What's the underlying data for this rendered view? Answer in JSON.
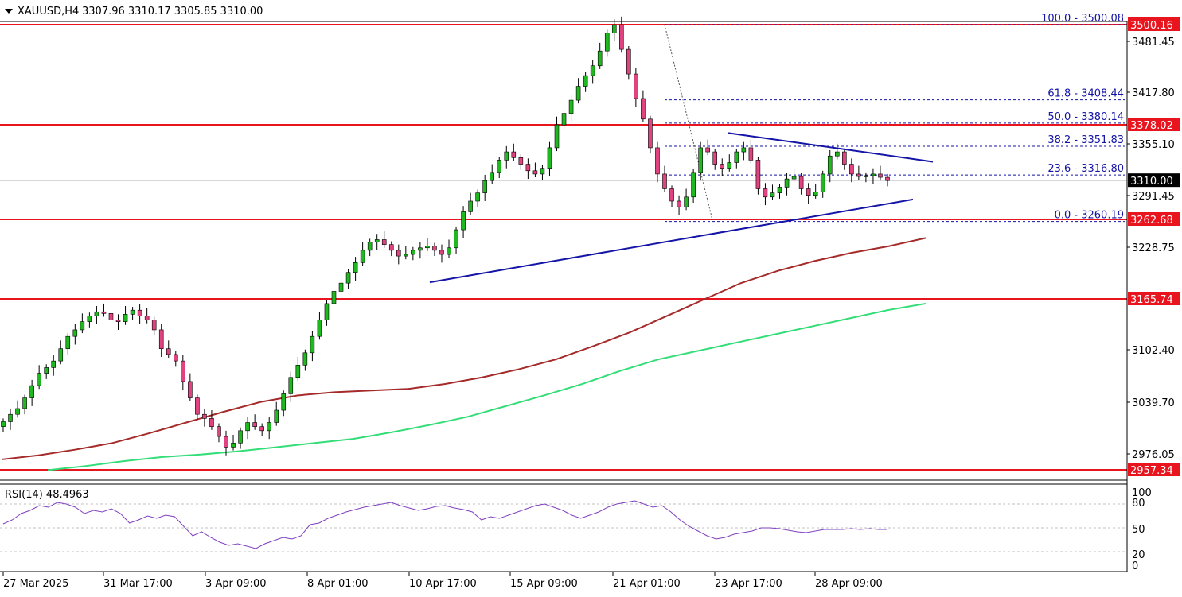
{
  "header": {
    "symbol": "XAUUSD,H4",
    "ohlc": "3307.96 3310.17 3305.85 3310.00"
  },
  "rsi_header": "RSI(14) 48.4963",
  "colors": {
    "background": "#ffffff",
    "bull": "#1fb81f",
    "bear": "#e0437f",
    "wick": "#000000",
    "ma_slow": "#a52a2a",
    "ma_fast": "#33dd77",
    "support": "#e8141e",
    "trend": "#1414a6",
    "fib": "#1414a6",
    "rsi": "#8040c0",
    "grid": "#c0c0c0"
  },
  "chart_data": [
    {
      "type": "candlestick",
      "panel": "price",
      "symbol": "XAUUSD",
      "timeframe": "H4",
      "ylim": [
        2957.34,
        3513.0
      ],
      "price_ticks": [
        "3481.45",
        "3417.80",
        "3355.10",
        "3291.45",
        "3228.75",
        "3102.40",
        "3039.70",
        "2976.05"
      ],
      "time_labels": [
        "27 Mar 2025",
        "31 Mar 17:00",
        "3 Apr 09:00",
        "8 Apr 01:00",
        "10 Apr 17:00",
        "15 Apr 09:00",
        "21 Apr 01:00",
        "23 Apr 17:00",
        "28 Apr 09:00"
      ],
      "horizontal_levels": [
        3500.16,
        3378.02,
        3262.68,
        3165.74,
        2957.34
      ],
      "level_labels": [
        "3500.16",
        "3378.02",
        "3262.68",
        "3165.74",
        "2957.34"
      ],
      "current_price": "3310.00",
      "fib_levels": [
        {
          "label": "100.0 - 3500.08",
          "value": 3500.08
        },
        {
          "label": "61.8 - 3408.44",
          "value": 3408.44
        },
        {
          "label": "50.0 - 3380.14",
          "value": 3380.14
        },
        {
          "label": "38.2 - 3351.83",
          "value": 3351.83
        },
        {
          "label": "23.6 - 3316.80",
          "value": 3316.8
        },
        {
          "label": "0.0 - 3260.19",
          "value": 3260.19
        }
      ],
      "trendlines": [
        {
          "from": [
            "10 Apr",
            3186
          ],
          "to": [
            "29 Apr",
            3287
          ]
        },
        {
          "from": [
            "23 Apr",
            3368
          ],
          "to": [
            "29 Apr",
            3333
          ]
        }
      ],
      "close_path": [
        3016,
        3025,
        3032,
        3045,
        3060,
        3075,
        3082,
        3090,
        3105,
        3120,
        3128,
        3138,
        3145,
        3150,
        3148,
        3140,
        3138,
        3147,
        3152,
        3145,
        3140,
        3128,
        3105,
        3098,
        3090,
        3065,
        3045,
        3025,
        3020,
        3010,
        2998,
        2985,
        2990,
        3005,
        3015,
        3010,
        3005,
        3015,
        3030,
        3050,
        3070,
        3085,
        3100,
        3120,
        3140,
        3160,
        3175,
        3185,
        3198,
        3210,
        3225,
        3235,
        3238,
        3232,
        3225,
        3218,
        3220,
        3225,
        3228,
        3230,
        3225,
        3220,
        3228,
        3250,
        3272,
        3285,
        3295,
        3310,
        3320,
        3335,
        3345,
        3338,
        3330,
        3322,
        3318,
        3325,
        3350,
        3378,
        3392,
        3408,
        3425,
        3438,
        3450,
        3468,
        3490,
        3500,
        3470,
        3440,
        3410,
        3385,
        3350,
        3318,
        3300,
        3285,
        3278,
        3290,
        3320,
        3350,
        3345,
        3330,
        3325,
        3332,
        3345,
        3350,
        3335,
        3300,
        3290,
        3295,
        3302,
        3312,
        3315,
        3300,
        3292,
        3296,
        3318,
        3340,
        3345,
        3330,
        3318,
        3315,
        3316,
        3318,
        3314,
        3310
      ]
    },
    {
      "type": "line",
      "panel": "price",
      "series": [
        {
          "values": [
            2970,
            2975,
            2982,
            2990,
            3002,
            3015,
            3028,
            3040,
            3048,
            3052,
            3054,
            3056,
            3062,
            3070,
            3080,
            3092,
            3108,
            3125,
            3145,
            3165,
            3185,
            3200,
            3212,
            3222,
            3230,
            3240
          ]
        },
        {
          "values": [
            2957,
            2962,
            2968,
            2973,
            2976,
            2980,
            2985,
            2990,
            2995,
            3003,
            3012,
            3022,
            3035,
            3048,
            3062,
            3078,
            3092,
            3102,
            3112,
            3122,
            3132,
            3142,
            3152,
            3160
          ]
        }
      ]
    },
    {
      "type": "line",
      "panel": "indicator",
      "name": "RSI(14)",
      "ylim": [
        0,
        100
      ],
      "yticks": [
        "100",
        "80",
        "50",
        "20",
        "0"
      ],
      "levels": [
        80,
        50,
        20
      ],
      "values": [
        55,
        60,
        68,
        72,
        78,
        76,
        82,
        80,
        76,
        68,
        72,
        70,
        74,
        68,
        56,
        60,
        65,
        62,
        66,
        64,
        52,
        40,
        45,
        38,
        32,
        28,
        30,
        27,
        24,
        30,
        34,
        38,
        36,
        40,
        54,
        56,
        62,
        66,
        70,
        73,
        76,
        78,
        80,
        82,
        78,
        75,
        72,
        74,
        77,
        78,
        75,
        73,
        70,
        60,
        64,
        62,
        66,
        70,
        74,
        78,
        80,
        76,
        72,
        66,
        62,
        66,
        70,
        76,
        80,
        82,
        84,
        80,
        76,
        78,
        70,
        60,
        52,
        46,
        40,
        36,
        38,
        42,
        44,
        46,
        50,
        50,
        49,
        47,
        45,
        44,
        46,
        48,
        48,
        48,
        49,
        48,
        49,
        48,
        48
      ]
    }
  ]
}
